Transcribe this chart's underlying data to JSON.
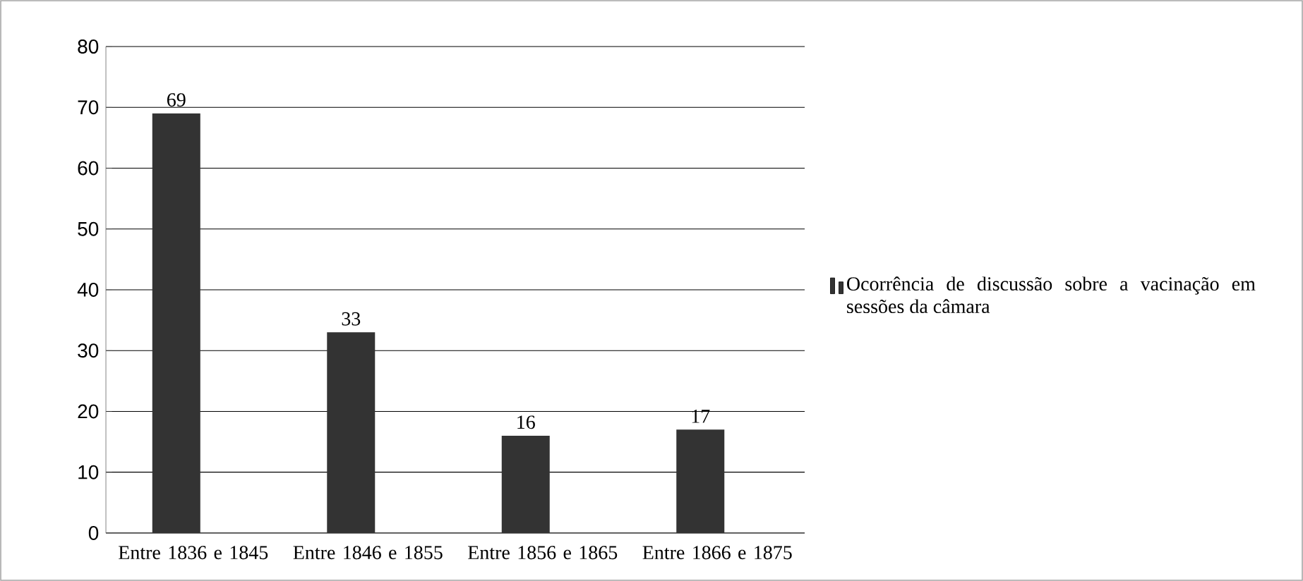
{
  "chart_data": {
    "type": "bar",
    "categories": [
      "Entre 1836 e 1845",
      "Entre 1846 e 1855",
      "Entre 1856 e 1865",
      "Entre 1866 e 1875"
    ],
    "series": [
      {
        "name": "Ocorrência de discussão sobre a vacinação em sessões da câmara",
        "color": "#333333",
        "values": [
          69,
          33,
          16,
          17
        ]
      }
    ],
    "ylim": [
      0,
      80
    ],
    "yticks": [
      0,
      10,
      20,
      30,
      40,
      50,
      60,
      70,
      80
    ],
    "grid": "y",
    "legend": "right",
    "data_labels": true
  }
}
